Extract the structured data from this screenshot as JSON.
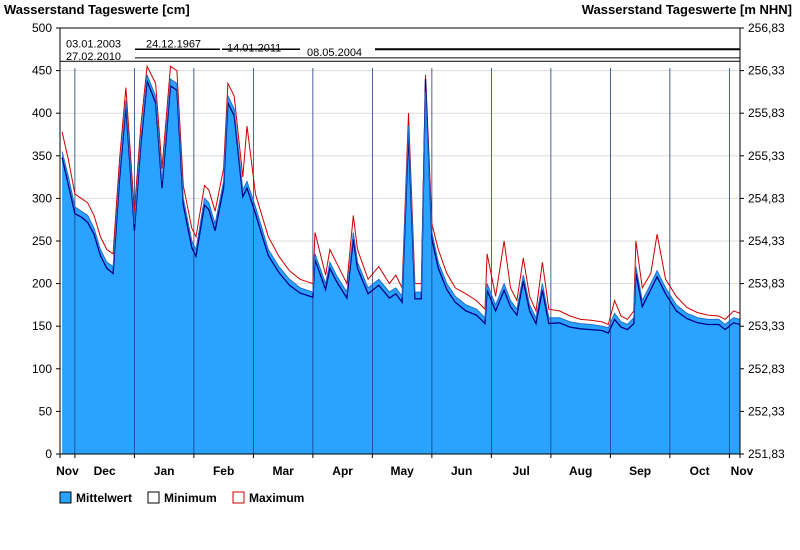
{
  "chart_data": {
    "type": "area",
    "title_left": "Wasserstand Tageswerte [cm]",
    "title_right": "Wasserstand Tageswerte [m NHN]",
    "ylim": [
      0,
      500
    ],
    "yticks": [
      0,
      50,
      100,
      150,
      200,
      250,
      300,
      350,
      400,
      450,
      500
    ],
    "y2ticks": [
      "251,83",
      "252,33",
      "252,83",
      "253,33",
      "253,83",
      "254,33",
      "254,83",
      "255,33",
      "255,83",
      "256,33",
      "256,83"
    ],
    "months": [
      "Nov",
      "Dec",
      "Jan",
      "Feb",
      "Mar",
      "Apr",
      "May",
      "Jun",
      "Jul",
      "Aug",
      "Sep",
      "Oct",
      "Nov"
    ],
    "legend": [
      {
        "name": "Mittelwert",
        "color": "#29a3ff"
      },
      {
        "name": "Minimum",
        "color": "#000080"
      },
      {
        "name": "Maximum",
        "color": "#cc0000"
      }
    ],
    "annotations": [
      {
        "date": "03.01.2003",
        "value": 475
      },
      {
        "date": "24.12.1967",
        "value": 475
      },
      {
        "date": "14.01.2011",
        "value": 475
      },
      {
        "date": "27.02.2010",
        "value": 461
      },
      {
        "date": "08.05.2004",
        "value": 465
      }
    ],
    "series": [
      {
        "name": "Mittelwert",
        "points": [
          [
            1,
            355
          ],
          [
            4,
            325
          ],
          [
            7,
            290
          ],
          [
            10,
            285
          ],
          [
            13,
            280
          ],
          [
            16,
            265
          ],
          [
            19,
            240
          ],
          [
            22,
            225
          ],
          [
            25,
            220
          ],
          [
            28,
            330
          ],
          [
            31,
            415
          ],
          [
            35,
            270
          ],
          [
            38,
            370
          ],
          [
            41,
            445
          ],
          [
            45,
            420
          ],
          [
            48,
            320
          ],
          [
            52,
            440
          ],
          [
            55,
            435
          ],
          [
            58,
            300
          ],
          [
            62,
            250
          ],
          [
            64,
            240
          ],
          [
            68,
            300
          ],
          [
            70,
            295
          ],
          [
            73,
            270
          ],
          [
            77,
            320
          ],
          [
            79,
            420
          ],
          [
            82,
            405
          ],
          [
            86,
            310
          ],
          [
            88,
            320
          ],
          [
            92,
            290
          ],
          [
            95,
            265
          ],
          [
            98,
            240
          ],
          [
            103,
            220
          ],
          [
            108,
            205
          ],
          [
            113,
            195
          ],
          [
            119,
            190
          ],
          [
            120,
            235
          ],
          [
            125,
            200
          ],
          [
            127,
            225
          ],
          [
            130,
            210
          ],
          [
            135,
            190
          ],
          [
            138,
            260
          ],
          [
            140,
            225
          ],
          [
            145,
            195
          ],
          [
            150,
            205
          ],
          [
            155,
            190
          ],
          [
            158,
            195
          ],
          [
            161,
            185
          ],
          [
            164,
            385
          ],
          [
            167,
            190
          ],
          [
            170,
            190
          ],
          [
            172,
            425
          ],
          [
            175,
            260
          ],
          [
            178,
            225
          ],
          [
            182,
            200
          ],
          [
            186,
            185
          ],
          [
            191,
            175
          ],
          [
            196,
            170
          ],
          [
            200,
            160
          ],
          [
            201,
            200
          ],
          [
            205,
            175
          ],
          [
            209,
            200
          ],
          [
            212,
            180
          ],
          [
            215,
            170
          ],
          [
            218,
            210
          ],
          [
            221,
            175
          ],
          [
            224,
            160
          ],
          [
            227,
            200
          ],
          [
            230,
            160
          ],
          [
            235,
            160
          ],
          [
            240,
            155
          ],
          [
            245,
            153
          ],
          [
            250,
            152
          ],
          [
            255,
            150
          ],
          [
            258,
            148
          ],
          [
            261,
            165
          ],
          [
            264,
            155
          ],
          [
            267,
            152
          ],
          [
            270,
            160
          ],
          [
            271,
            220
          ],
          [
            274,
            180
          ],
          [
            278,
            200
          ],
          [
            281,
            215
          ],
          [
            285,
            195
          ],
          [
            290,
            175
          ],
          [
            295,
            165
          ],
          [
            300,
            160
          ],
          [
            305,
            158
          ],
          [
            310,
            158
          ],
          [
            313,
            152
          ],
          [
            317,
            160
          ],
          [
            320,
            158
          ]
        ]
      },
      {
        "name": "Minimum",
        "points": [
          [
            1,
            348
          ],
          [
            4,
            315
          ],
          [
            7,
            282
          ],
          [
            10,
            278
          ],
          [
            13,
            272
          ],
          [
            16,
            258
          ],
          [
            19,
            233
          ],
          [
            22,
            218
          ],
          [
            25,
            212
          ],
          [
            28,
            322
          ],
          [
            31,
            408
          ],
          [
            35,
            262
          ],
          [
            38,
            362
          ],
          [
            41,
            438
          ],
          [
            45,
            412
          ],
          [
            48,
            312
          ],
          [
            52,
            432
          ],
          [
            55,
            427
          ],
          [
            58,
            292
          ],
          [
            62,
            242
          ],
          [
            64,
            232
          ],
          [
            68,
            292
          ],
          [
            70,
            287
          ],
          [
            73,
            262
          ],
          [
            77,
            312
          ],
          [
            79,
            412
          ],
          [
            82,
            397
          ],
          [
            86,
            302
          ],
          [
            88,
            312
          ],
          [
            92,
            282
          ],
          [
            95,
            257
          ],
          [
            98,
            233
          ],
          [
            103,
            213
          ],
          [
            108,
            198
          ],
          [
            113,
            189
          ],
          [
            119,
            184
          ],
          [
            120,
            228
          ],
          [
            125,
            193
          ],
          [
            127,
            218
          ],
          [
            130,
            203
          ],
          [
            135,
            183
          ],
          [
            138,
            252
          ],
          [
            140,
            218
          ],
          [
            145,
            188
          ],
          [
            150,
            198
          ],
          [
            155,
            183
          ],
          [
            158,
            188
          ],
          [
            161,
            178
          ],
          [
            164,
            375
          ],
          [
            167,
            182
          ],
          [
            170,
            182
          ],
          [
            172,
            440
          ],
          [
            175,
            252
          ],
          [
            178,
            218
          ],
          [
            182,
            193
          ],
          [
            186,
            178
          ],
          [
            191,
            168
          ],
          [
            196,
            163
          ],
          [
            200,
            153
          ],
          [
            201,
            192
          ],
          [
            205,
            168
          ],
          [
            209,
            192
          ],
          [
            212,
            173
          ],
          [
            215,
            163
          ],
          [
            218,
            203
          ],
          [
            221,
            168
          ],
          [
            224,
            153
          ],
          [
            227,
            192
          ],
          [
            230,
            153
          ],
          [
            235,
            154
          ],
          [
            240,
            149
          ],
          [
            245,
            147
          ],
          [
            250,
            146
          ],
          [
            255,
            145
          ],
          [
            258,
            142
          ],
          [
            261,
            158
          ],
          [
            264,
            149
          ],
          [
            267,
            146
          ],
          [
            270,
            153
          ],
          [
            271,
            212
          ],
          [
            274,
            173
          ],
          [
            278,
            193
          ],
          [
            281,
            208
          ],
          [
            285,
            188
          ],
          [
            290,
            168
          ],
          [
            295,
            159
          ],
          [
            300,
            154
          ],
          [
            305,
            152
          ],
          [
            310,
            152
          ],
          [
            313,
            146
          ],
          [
            317,
            154
          ],
          [
            320,
            152
          ]
        ]
      },
      {
        "name": "Maximum",
        "points": [
          [
            1,
            378
          ],
          [
            4,
            345
          ],
          [
            7,
            305
          ],
          [
            10,
            300
          ],
          [
            13,
            295
          ],
          [
            16,
            280
          ],
          [
            19,
            255
          ],
          [
            22,
            240
          ],
          [
            25,
            235
          ],
          [
            28,
            345
          ],
          [
            31,
            430
          ],
          [
            35,
            285
          ],
          [
            38,
            385
          ],
          [
            41,
            455
          ],
          [
            45,
            435
          ],
          [
            48,
            335
          ],
          [
            52,
            455
          ],
          [
            55,
            450
          ],
          [
            58,
            315
          ],
          [
            62,
            265
          ],
          [
            64,
            255
          ],
          [
            68,
            315
          ],
          [
            70,
            310
          ],
          [
            73,
            285
          ],
          [
            77,
            335
          ],
          [
            79,
            435
          ],
          [
            82,
            420
          ],
          [
            86,
            325
          ],
          [
            88,
            385
          ],
          [
            92,
            305
          ],
          [
            95,
            280
          ],
          [
            98,
            255
          ],
          [
            103,
            232
          ],
          [
            108,
            215
          ],
          [
            113,
            205
          ],
          [
            119,
            200
          ],
          [
            120,
            260
          ],
          [
            125,
            210
          ],
          [
            127,
            240
          ],
          [
            130,
            225
          ],
          [
            135,
            200
          ],
          [
            138,
            280
          ],
          [
            140,
            240
          ],
          [
            145,
            205
          ],
          [
            150,
            220
          ],
          [
            155,
            200
          ],
          [
            158,
            210
          ],
          [
            161,
            195
          ],
          [
            164,
            400
          ],
          [
            167,
            200
          ],
          [
            170,
            200
          ],
          [
            172,
            445
          ],
          [
            175,
            270
          ],
          [
            178,
            240
          ],
          [
            182,
            212
          ],
          [
            186,
            195
          ],
          [
            191,
            188
          ],
          [
            196,
            180
          ],
          [
            200,
            170
          ],
          [
            201,
            235
          ],
          [
            205,
            185
          ],
          [
            209,
            250
          ],
          [
            212,
            195
          ],
          [
            215,
            180
          ],
          [
            218,
            230
          ],
          [
            221,
            185
          ],
          [
            224,
            168
          ],
          [
            227,
            225
          ],
          [
            230,
            170
          ],
          [
            235,
            168
          ],
          [
            240,
            162
          ],
          [
            245,
            158
          ],
          [
            250,
            157
          ],
          [
            255,
            155
          ],
          [
            258,
            152
          ],
          [
            261,
            180
          ],
          [
            264,
            162
          ],
          [
            267,
            158
          ],
          [
            270,
            168
          ],
          [
            271,
            250
          ],
          [
            274,
            195
          ],
          [
            278,
            212
          ],
          [
            281,
            258
          ],
          [
            285,
            205
          ],
          [
            290,
            185
          ],
          [
            295,
            172
          ],
          [
            300,
            166
          ],
          [
            305,
            163
          ],
          [
            310,
            162
          ],
          [
            313,
            158
          ],
          [
            317,
            168
          ],
          [
            320,
            165
          ]
        ]
      }
    ]
  }
}
